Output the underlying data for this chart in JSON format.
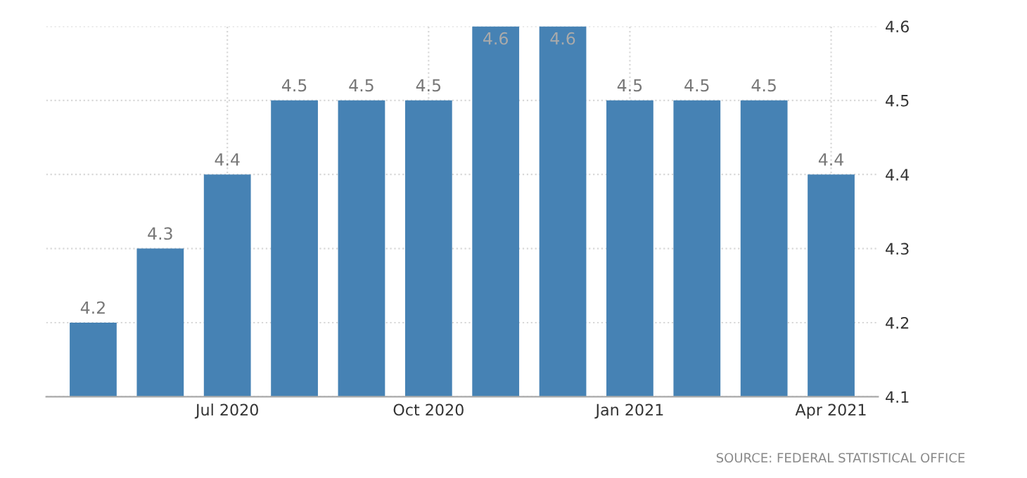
{
  "chart_data": {
    "type": "bar",
    "categories": [
      null,
      null,
      "Jul 2020",
      null,
      null,
      "Oct 2020",
      null,
      null,
      "Jan 2021",
      null,
      null,
      "Apr 2021"
    ],
    "values": [
      4.2,
      4.3,
      4.4,
      4.5,
      4.5,
      4.5,
      4.6,
      4.6,
      4.5,
      4.5,
      4.5,
      4.4
    ],
    "color": "#4682b4",
    "ylim": [
      4.1,
      4.6
    ],
    "yticks": [
      4.1,
      4.2,
      4.3,
      4.4,
      4.5,
      4.6
    ],
    "grid": true,
    "data_labels": true,
    "annotations": [
      "SOURCE: FEDERAL STATISTICAL OFFICE"
    ]
  }
}
